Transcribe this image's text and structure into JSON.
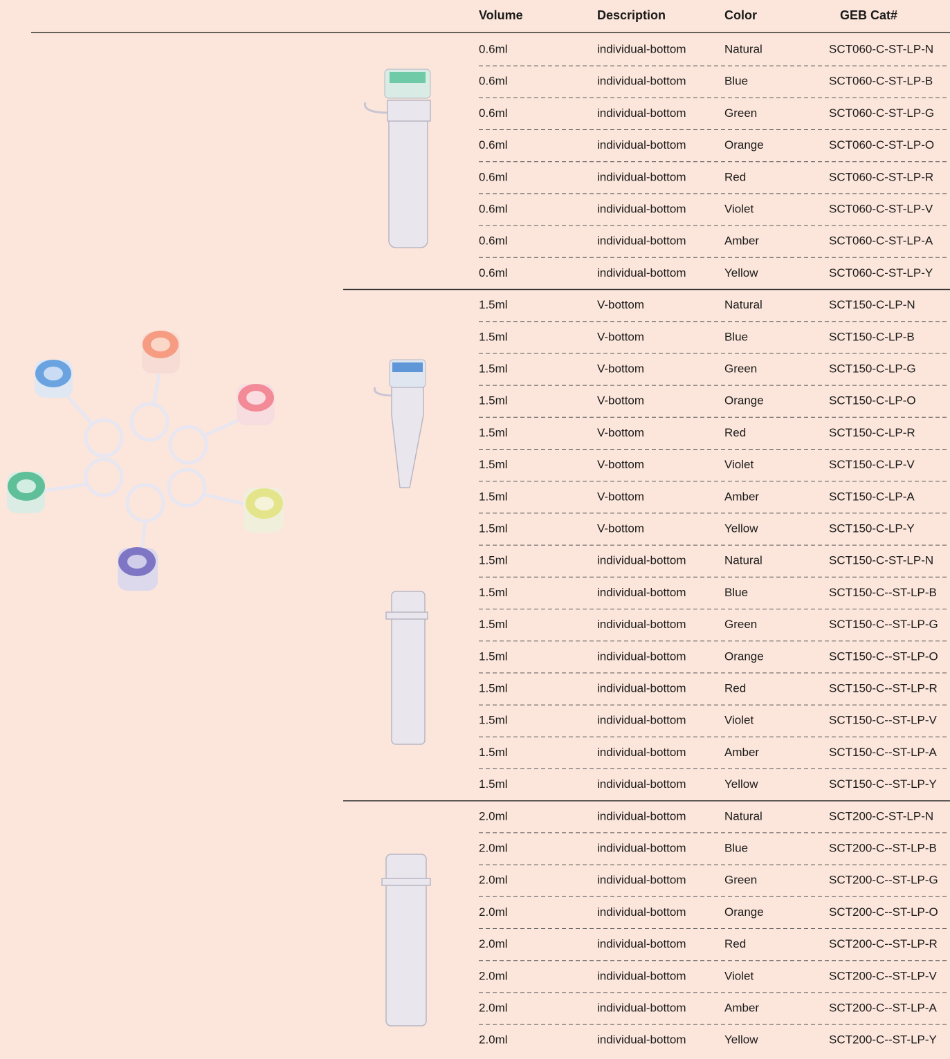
{
  "table": {
    "headers": [
      "Volume",
      "Description",
      "Color",
      "GEB Cat#"
    ],
    "rows": [
      [
        "0.6ml",
        "individual-bottom",
        "Natural",
        "SCT060-C-ST-LP-N"
      ],
      [
        "0.6ml",
        "individual-bottom",
        "Blue",
        "SCT060-C-ST-LP-B"
      ],
      [
        "0.6ml",
        "individual-bottom",
        "Green",
        "SCT060-C-ST-LP-G"
      ],
      [
        "0.6ml",
        "individual-bottom",
        "Orange",
        "SCT060-C-ST-LP-O"
      ],
      [
        "0.6ml",
        "individual-bottom",
        "Red",
        "SCT060-C-ST-LP-R"
      ],
      [
        "0.6ml",
        "individual-bottom",
        "Violet",
        "SCT060-C-ST-LP-V"
      ],
      [
        "0.6ml",
        "individual-bottom",
        "Amber",
        "SCT060-C-ST-LP-A"
      ],
      [
        "0.6ml",
        "individual-bottom",
        "Yellow",
        "SCT060-C-ST-LP-Y"
      ],
      [
        "1.5ml",
        "V-bottom",
        "Natural",
        "SCT150-C-LP-N"
      ],
      [
        "1.5ml",
        "V-bottom",
        "Blue",
        "SCT150-C-LP-B"
      ],
      [
        "1.5ml",
        "V-bottom",
        "Green",
        "SCT150-C-LP-G"
      ],
      [
        "1.5ml",
        "V-bottom",
        "Orange",
        "SCT150-C-LP-O"
      ],
      [
        "1.5ml",
        "V-bottom",
        "Red",
        "SCT150-C-LP-R"
      ],
      [
        "1.5ml",
        "V-bottom",
        "Violet",
        "SCT150-C-LP-V"
      ],
      [
        "1.5ml",
        "V-bottom",
        "Amber",
        "SCT150-C-LP-A"
      ],
      [
        "1.5ml",
        "V-bottom",
        "Yellow",
        "SCT150-C-LP-Y"
      ],
      [
        "1.5ml",
        "individual-bottom",
        "Natural",
        "SCT150-C-ST-LP-N"
      ],
      [
        "1.5ml",
        "individual-bottom",
        "Blue",
        "SCT150-C--ST-LP-B"
      ],
      [
        "1.5ml",
        "individual-bottom",
        "Green",
        "SCT150-C--ST-LP-G"
      ],
      [
        "1.5ml",
        "individual-bottom",
        "Orange",
        "SCT150-C--ST-LP-O"
      ],
      [
        "1.5ml",
        "individual-bottom",
        "Red",
        "SCT150-C--ST-LP-R"
      ],
      [
        "1.5ml",
        "individual-bottom",
        "Violet",
        "SCT150-C--ST-LP-V"
      ],
      [
        "1.5ml",
        "individual-bottom",
        "Amber",
        "SCT150-C--ST-LP-A"
      ],
      [
        "1.5ml",
        "individual-bottom",
        "Yellow",
        "SCT150-C--ST-LP-Y"
      ],
      [
        "2.0ml",
        "individual-bottom",
        "Natural",
        "SCT200-C-ST-LP-N"
      ],
      [
        "2.0ml",
        "individual-bottom",
        "Blue",
        "SCT200-C--ST-LP-B"
      ],
      [
        "2.0ml",
        "individual-bottom",
        "Green",
        "SCT200-C--ST-LP-G"
      ],
      [
        "2.0ml",
        "individual-bottom",
        "Orange",
        "SCT200-C--ST-LP-O"
      ],
      [
        "2.0ml",
        "individual-bottom",
        "Red",
        "SCT200-C--ST-LP-R"
      ],
      [
        "2.0ml",
        "individual-bottom",
        "Violet",
        "SCT200-C--ST-LP-V"
      ],
      [
        "2.0ml",
        "individual-bottom",
        "Amber",
        "SCT200-C--ST-LP-A"
      ],
      [
        "2.0ml",
        "individual-bottom",
        "Yellow",
        "SCT200-C--ST-LP-Y"
      ]
    ]
  }
}
